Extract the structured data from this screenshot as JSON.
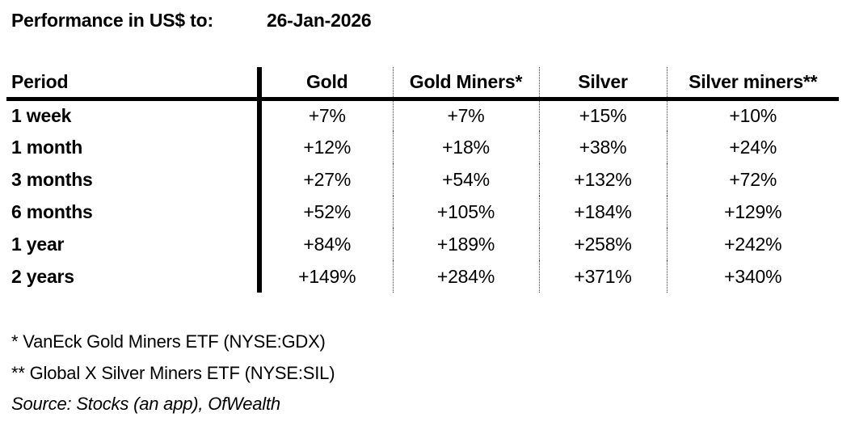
{
  "header": {
    "label": "Performance in US$ to:",
    "date": "26-Jan-2026"
  },
  "chart_data": {
    "type": "table",
    "title": "Performance in US$ to: 26-Jan-2026",
    "columns": [
      "Period",
      "Gold",
      "Gold Miners*",
      "Silver",
      "Silver miners**"
    ],
    "rows": [
      [
        "1 week",
        "+7%",
        "+7%",
        "+15%",
        "+10%"
      ],
      [
        "1 month",
        "+12%",
        "+18%",
        "+38%",
        "+24%"
      ],
      [
        "3 months",
        "+27%",
        "+54%",
        "+132%",
        "+72%"
      ],
      [
        "6 months",
        "+52%",
        "+105%",
        "+184%",
        "+129%"
      ],
      [
        "1 year",
        "+84%",
        "+189%",
        "+258%",
        "+242%"
      ],
      [
        "2 years",
        "+149%",
        "+284%",
        "+371%",
        "+340%"
      ]
    ],
    "footnotes": [
      "* VanEck Gold Miners ETF (NYSE:GDX)",
      "** Global X Silver Miners ETF (NYSE:SIL)"
    ],
    "source": "Source: Stocks (an app), OfWealth"
  },
  "colors": {
    "text": "#000000",
    "background": "#ffffff",
    "rule": "#000000"
  }
}
